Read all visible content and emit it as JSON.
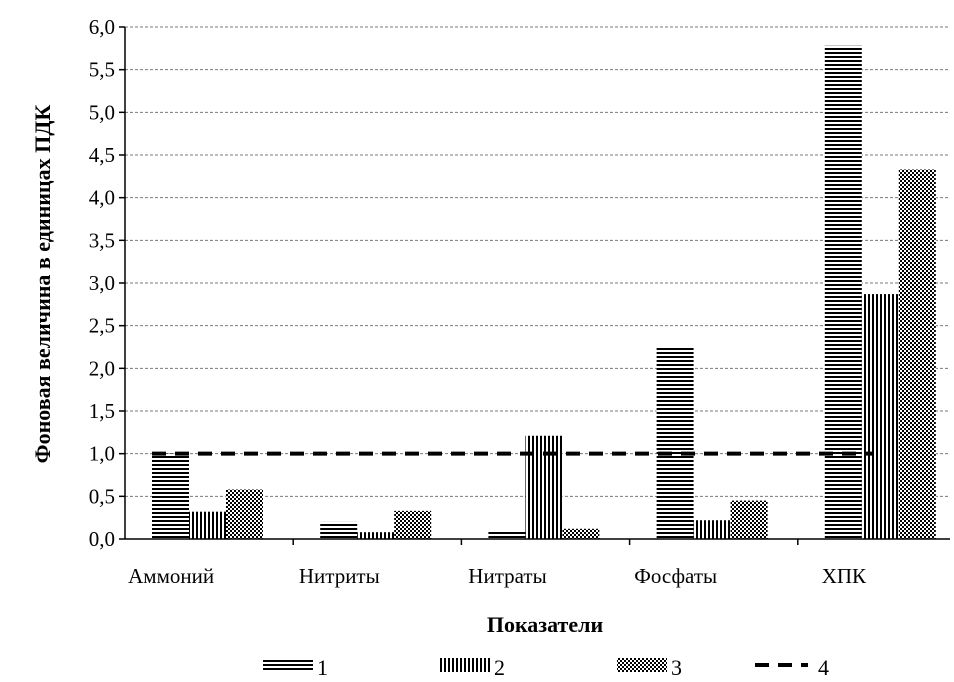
{
  "chart_data": {
    "type": "bar",
    "categories": [
      "Аммоний",
      "Нитриты",
      "Нитраты",
      "Фосфаты",
      "ХПК"
    ],
    "series": [
      {
        "name": "1",
        "pattern": "horizontal-lines",
        "values": [
          1.0,
          0.2,
          0.1,
          2.25,
          5.78
        ]
      },
      {
        "name": "2",
        "pattern": "vertical-lines",
        "values": [
          0.32,
          0.08,
          1.21,
          0.22,
          2.87
        ]
      },
      {
        "name": "3",
        "pattern": "checker",
        "values": [
          0.58,
          0.33,
          0.12,
          0.45,
          4.33
        ]
      }
    ],
    "reference_line": {
      "name": "4",
      "value": 1.0,
      "style": "dashed"
    },
    "title": "",
    "xlabel": "Показатели",
    "ylabel": "Фоновая величина в единицах ПДК",
    "ylim": [
      0,
      6
    ],
    "yticks": [
      "0,0",
      "0,5",
      "1,0",
      "1,5",
      "2,0",
      "2,5",
      "3,0",
      "3,5",
      "4,0",
      "4,5",
      "5,0",
      "5,5",
      "6,0"
    ],
    "grid": true,
    "legend_position": "bottom"
  }
}
